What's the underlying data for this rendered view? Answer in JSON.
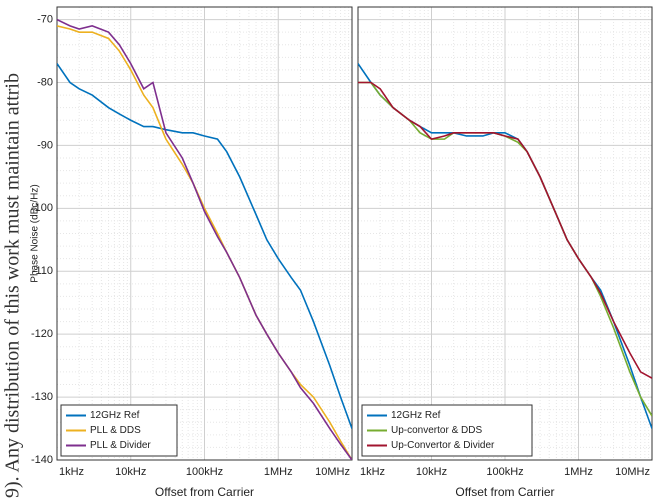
{
  "side_text": "9). Any distribution of this work must maintain attrib",
  "chart_data": [
    {
      "type": "line",
      "x_scale": "log",
      "grid": true,
      "minor_grid": true,
      "legend": "lower left",
      "show_ytick_labels": true,
      "ylabel": "Phase Noise (dBc/Hz)",
      "xlabel": "Offset from Carrier",
      "xlim": [
        1000,
        10000000
      ],
      "ylim": [
        -140,
        -68
      ],
      "xticks": [
        {
          "value": 1000,
          "label": "1kHz"
        },
        {
          "value": 10000,
          "label": "10kHz"
        },
        {
          "value": 100000,
          "label": "100kHz"
        },
        {
          "value": 1000000,
          "label": "1MHz"
        },
        {
          "value": 10000000,
          "label": "10MHz"
        }
      ],
      "yticks": [
        -70,
        -80,
        -90,
        -100,
        -110,
        -120,
        -130,
        -140
      ],
      "x": [
        1000,
        1500,
        2000,
        3000,
        5000,
        7000,
        10000,
        15000,
        20000,
        30000,
        50000,
        70000,
        100000,
        150000,
        200000,
        300000,
        500000,
        700000,
        1000000,
        1500000,
        2000000,
        3000000,
        5000000,
        7000000,
        10000000
      ],
      "series": [
        {
          "name": "12GHz Ref",
          "color": "#0072bd",
          "values": [
            -77,
            -80,
            -81,
            -82,
            -84,
            -85,
            -86,
            -87,
            -87,
            -87.5,
            -88,
            -88,
            -88.5,
            -89,
            -91,
            -95,
            -101,
            -105,
            -108,
            -111,
            -113,
            -118,
            -125,
            -130,
            -135
          ]
        },
        {
          "name": "PLL & DDS",
          "color": "#edb120",
          "values": [
            -71,
            -71.5,
            -72,
            -72,
            -73,
            -75,
            -78,
            -82,
            -84,
            -89,
            -93,
            -96,
            -100,
            -104,
            -107,
            -111,
            -117,
            -120,
            -123,
            -126,
            -128,
            -130,
            -134,
            -137,
            -140
          ]
        },
        {
          "name": "PLL & Divider",
          "color": "#7e2f8e",
          "values": [
            -70,
            -71,
            -71.5,
            -71,
            -72,
            -74,
            -77,
            -81,
            -80,
            -88,
            -92,
            -96,
            -100.5,
            -104.5,
            -107,
            -111,
            -117,
            -120,
            -123,
            -126,
            -128.5,
            -131,
            -135,
            -137.5,
            -140
          ]
        }
      ]
    },
    {
      "type": "line",
      "x_scale": "log",
      "grid": true,
      "minor_grid": true,
      "legend": "lower left",
      "show_ytick_labels": false,
      "xlabel": "Offset from Carrier",
      "xlim": [
        1000,
        10000000
      ],
      "ylim": [
        -140,
        -68
      ],
      "xticks": [
        {
          "value": 1000,
          "label": "1kHz"
        },
        {
          "value": 10000,
          "label": "10kHz"
        },
        {
          "value": 100000,
          "label": "100kHz"
        },
        {
          "value": 1000000,
          "label": "1MHz"
        },
        {
          "value": 10000000,
          "label": "10MHz"
        }
      ],
      "yticks": [
        -70,
        -80,
        -90,
        -100,
        -110,
        -120,
        -130,
        -140
      ],
      "x": [
        1000,
        1500,
        2000,
        3000,
        5000,
        7000,
        10000,
        15000,
        20000,
        30000,
        50000,
        70000,
        100000,
        150000,
        200000,
        300000,
        500000,
        700000,
        1000000,
        1500000,
        2000000,
        3000000,
        5000000,
        7000000,
        10000000
      ],
      "series": [
        {
          "name": "12GHz Ref",
          "color": "#0072bd",
          "values": [
            -77,
            -80,
            -82,
            -84,
            -86,
            -87,
            -88,
            -88,
            -88,
            -88.5,
            -88.5,
            -88,
            -88,
            -89,
            -91,
            -95,
            -101,
            -105,
            -108,
            -111,
            -113,
            -118,
            -125,
            -130,
            -135
          ]
        },
        {
          "name": "Up-convertor & DDS",
          "color": "#77ac30",
          "values": [
            -80,
            -80,
            -82,
            -84,
            -86,
            -88,
            -89,
            -89,
            -88,
            -88,
            -88,
            -88,
            -88.5,
            -89.5,
            -91,
            -95,
            -101,
            -105,
            -108,
            -111,
            -114,
            -119,
            -126,
            -130,
            -133
          ]
        },
        {
          "name": "Up-Convertor & Divider",
          "color": "#a2142f",
          "values": [
            -80,
            -80,
            -81,
            -84,
            -86,
            -87,
            -89,
            -88.5,
            -88,
            -88,
            -88,
            -88,
            -88.5,
            -89,
            -91,
            -95,
            -101,
            -105,
            -108,
            -111,
            -113.5,
            -118,
            -123,
            -126,
            -127
          ]
        }
      ]
    }
  ]
}
